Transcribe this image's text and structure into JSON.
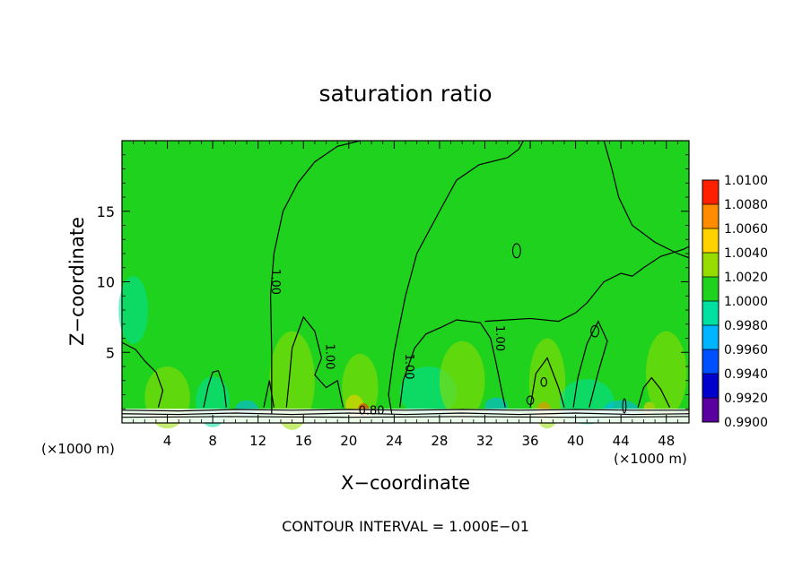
{
  "chart_data": {
    "type": "heatmap",
    "title": "saturation ratio",
    "xlabel": "X−coordinate",
    "ylabel": "Z−coordinate",
    "x_units_left": "(×1000 m)",
    "x_units_right": "(×1000 m)",
    "xlim": [
      0,
      50
    ],
    "ylim": [
      0,
      20
    ],
    "x_ticks": [
      4,
      8,
      12,
      16,
      20,
      24,
      28,
      32,
      36,
      40,
      44,
      48
    ],
    "y_ticks": [
      5,
      10,
      15
    ],
    "footer": "CONTOUR INTERVAL = 1.000E−01",
    "contour_labels": [
      {
        "text": "1.00",
        "x": 13.2,
        "y": 10.0
      },
      {
        "text": "1.00",
        "x": 18.0,
        "y": 4.7
      },
      {
        "text": "1.00",
        "x": 25.0,
        "y": 4.0
      },
      {
        "text": "1.00",
        "x": 33.0,
        "y": 6.0
      },
      {
        "text": "0.80",
        "x": 22.0,
        "y": 0.6
      }
    ],
    "colorbar": {
      "min": 0.99,
      "max": 1.01,
      "step": 0.002,
      "levels": [
        "0.9900",
        "0.9920",
        "0.9940",
        "0.9960",
        "0.9980",
        "1.0000",
        "1.0020",
        "1.0040",
        "1.0060",
        "1.0080",
        "1.0100"
      ],
      "colors": [
        "#5a00a0",
        "#0000cc",
        "#0050ff",
        "#00b4ff",
        "#00e0a0",
        "#1ed21e",
        "#96dc00",
        "#ffd200",
        "#ff8c00",
        "#ff2000",
        "#ff9a9a"
      ]
    },
    "colors": {
      "background": "#1ed21e",
      "contour": "#000000"
    }
  }
}
